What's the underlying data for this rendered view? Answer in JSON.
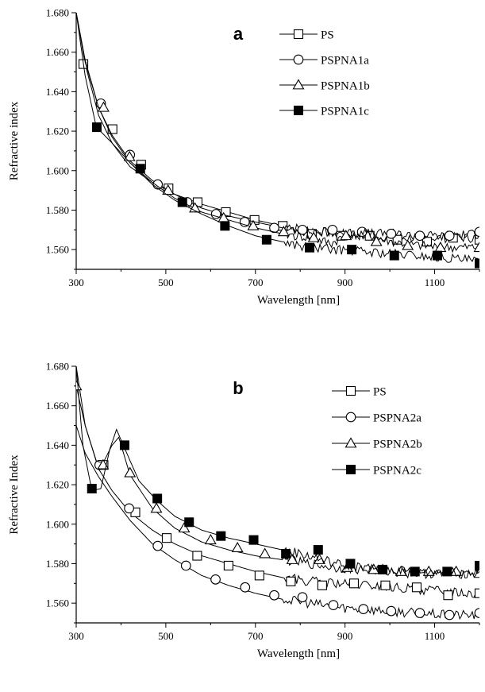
{
  "chart_data": [
    {
      "type": "line",
      "panel_label": "a",
      "xlabel": "Wavelength [nm]",
      "ylabel": "Refractive index",
      "xlim": [
        300,
        1200
      ],
      "ylim": [
        1.55,
        1.68
      ],
      "xticks": [
        "300",
        "500",
        "700",
        "900",
        "1100"
      ],
      "yticks": [
        "1.560",
        "1.580",
        "1.600",
        "1.620",
        "1.640",
        "1.660",
        "1.680"
      ],
      "grid": false,
      "legend_position": "top-right",
      "series": [
        {
          "name": "PS",
          "marker": "open-square",
          "x": [
            300,
            320,
            350,
            380,
            420,
            470,
            520,
            580,
            640,
            700,
            760,
            820,
            880,
            940,
            1000,
            1060,
            1120,
            1200
          ],
          "y": [
            1.68,
            1.654,
            1.628,
            1.614,
            1.602,
            1.594,
            1.588,
            1.583,
            1.579,
            1.575,
            1.572,
            1.57,
            1.568,
            1.567,
            1.566,
            1.566,
            1.566,
            1.566
          ],
          "marker_x": [
            316,
            381,
            445,
            506,
            571,
            634,
            698,
            761,
            826,
            891,
            955,
            1017,
            1083,
            1141,
            1200
          ],
          "marker_y": [
            1.654,
            1.621,
            1.603,
            1.591,
            1.584,
            1.579,
            1.575,
            1.572,
            1.568,
            1.567,
            1.567,
            1.565,
            1.564,
            1.566,
            1.565
          ]
        },
        {
          "name": "PSPNA1a",
          "marker": "open-circle",
          "x": [
            300,
            320,
            350,
            380,
            420,
            470,
            520,
            580,
            640,
            700,
            760,
            820,
            880,
            940,
            1000,
            1060,
            1120,
            1200
          ],
          "y": [
            1.68,
            1.656,
            1.632,
            1.618,
            1.605,
            1.595,
            1.588,
            1.581,
            1.577,
            1.574,
            1.571,
            1.569,
            1.569,
            1.568,
            1.568,
            1.567,
            1.567,
            1.568
          ],
          "marker_x": [
            355,
            420,
            482,
            548,
            612,
            676,
            742,
            805,
            872,
            938,
            1003,
            1067,
            1133,
            1200
          ],
          "marker_y": [
            1.634,
            1.608,
            1.593,
            1.584,
            1.578,
            1.574,
            1.571,
            1.57,
            1.57,
            1.569,
            1.568,
            1.567,
            1.567,
            1.569
          ]
        },
        {
          "name": "PSPNA1b",
          "marker": "open-triangle",
          "x": [
            300,
            320,
            350,
            380,
            420,
            470,
            520,
            580,
            640,
            700,
            760,
            820,
            870,
            900,
            940,
            1000,
            1060,
            1120,
            1200
          ],
          "y": [
            1.68,
            1.655,
            1.632,
            1.617,
            1.604,
            1.594,
            1.586,
            1.579,
            1.575,
            1.571,
            1.568,
            1.566,
            1.563,
            1.567,
            1.568,
            1.564,
            1.562,
            1.561,
            1.561
          ],
          "marker_x": [
            361,
            419,
            505,
            565,
            629,
            695,
            763,
            830,
            902,
            970,
            1040,
            1113,
            1200
          ],
          "marker_y": [
            1.632,
            1.607,
            1.59,
            1.581,
            1.576,
            1.572,
            1.569,
            1.566,
            1.567,
            1.564,
            1.562,
            1.561,
            1.561
          ]
        },
        {
          "name": "PSPNA1c",
          "marker": "filled-square",
          "x": [
            300,
            320,
            345,
            380,
            420,
            470,
            520,
            580,
            640,
            700,
            760,
            820,
            880,
            940,
            1000,
            1060,
            1120,
            1200
          ],
          "y": [
            1.68,
            1.648,
            1.622,
            1.614,
            1.604,
            1.593,
            1.585,
            1.578,
            1.572,
            1.567,
            1.564,
            1.561,
            1.56,
            1.559,
            1.558,
            1.557,
            1.556,
            1.554
          ],
          "marker_x": [
            346,
            443,
            537,
            632,
            725,
            821,
            915,
            1010,
            1106,
            1200
          ],
          "marker_y": [
            1.622,
            1.601,
            1.584,
            1.572,
            1.565,
            1.561,
            1.56,
            1.557,
            1.557,
            1.553
          ]
        }
      ]
    },
    {
      "type": "line",
      "panel_label": "b",
      "xlabel": "Wavelength [nm]",
      "ylabel": "Refractive Index",
      "xlim": [
        300,
        1200
      ],
      "ylim": [
        1.55,
        1.68
      ],
      "xticks": [
        "300",
        "500",
        "700",
        "900",
        "1100"
      ],
      "yticks": [
        "1.560",
        "1.580",
        "1.600",
        "1.620",
        "1.640",
        "1.660",
        "1.680"
      ],
      "grid": false,
      "legend_position": "top-right",
      "series": [
        {
          "name": "PS",
          "marker": "open-square",
          "x": [
            300,
            320,
            350,
            380,
            420,
            470,
            520,
            580,
            640,
            700,
            760,
            820,
            880,
            940,
            1000,
            1060,
            1120,
            1200
          ],
          "y": [
            1.68,
            1.65,
            1.628,
            1.617,
            1.606,
            1.597,
            1.59,
            1.584,
            1.58,
            1.576,
            1.573,
            1.571,
            1.57,
            1.569,
            1.568,
            1.567,
            1.566,
            1.565
          ],
          "marker_x": [
            361,
            432,
            502,
            570,
            640,
            709,
            779,
            849,
            920,
            990,
            1060,
            1130,
            1200
          ],
          "marker_y": [
            1.63,
            1.606,
            1.593,
            1.584,
            1.579,
            1.574,
            1.571,
            1.569,
            1.57,
            1.569,
            1.568,
            1.564,
            1.565
          ]
        },
        {
          "name": "PSPNA2a",
          "marker": "open-circle",
          "x": [
            300,
            320,
            350,
            380,
            420,
            470,
            520,
            580,
            640,
            700,
            760,
            820,
            880,
            940,
            1000,
            1060,
            1120,
            1200
          ],
          "y": [
            1.65,
            1.636,
            1.624,
            1.614,
            1.602,
            1.59,
            1.582,
            1.574,
            1.569,
            1.565,
            1.562,
            1.56,
            1.558,
            1.557,
            1.556,
            1.555,
            1.554,
            1.554
          ],
          "marker_x": [
            352,
            418,
            482,
            545,
            611,
            677,
            742,
            805,
            874,
            941,
            1003,
            1067,
            1133,
            1200
          ],
          "marker_y": [
            1.63,
            1.608,
            1.589,
            1.579,
            1.572,
            1.568,
            1.564,
            1.563,
            1.559,
            1.557,
            1.556,
            1.555,
            1.554,
            1.555
          ]
        },
        {
          "name": "PSPNA2b",
          "marker": "open-triangle",
          "x": [
            300,
            320,
            345,
            360,
            380,
            395,
            420,
            470,
            520,
            580,
            640,
            700,
            760,
            820,
            880,
            940,
            1000,
            1060,
            1120,
            1200
          ],
          "y": [
            1.67,
            1.65,
            1.632,
            1.631,
            1.64,
            1.644,
            1.625,
            1.608,
            1.598,
            1.591,
            1.587,
            1.584,
            1.582,
            1.58,
            1.578,
            1.577,
            1.576,
            1.575,
            1.575,
            1.575
          ],
          "marker_x": [
            300,
            360,
            420,
            479,
            541,
            600,
            660,
            721,
            782,
            843,
            905,
            964,
            1025,
            1087,
            1148,
            1200
          ],
          "marker_y": [
            1.67,
            1.63,
            1.626,
            1.608,
            1.598,
            1.592,
            1.588,
            1.585,
            1.582,
            1.582,
            1.578,
            1.577,
            1.576,
            1.576,
            1.576,
            1.575
          ]
        },
        {
          "name": "PSPNA2c",
          "marker": "filled-square",
          "x": [
            300,
            315,
            335,
            355,
            375,
            390,
            405,
            440,
            480,
            520,
            580,
            640,
            700,
            760,
            820,
            880,
            940,
            1000,
            1060,
            1120,
            1200
          ],
          "y": [
            1.68,
            1.64,
            1.617,
            1.618,
            1.638,
            1.648,
            1.64,
            1.622,
            1.612,
            1.604,
            1.597,
            1.593,
            1.59,
            1.587,
            1.584,
            1.58,
            1.578,
            1.577,
            1.576,
            1.576,
            1.576
          ],
          "marker_x": [
            335,
            408,
            481,
            552,
            623,
            696,
            768,
            840,
            912,
            984,
            1056,
            1128,
            1200
          ],
          "marker_y": [
            1.618,
            1.64,
            1.613,
            1.601,
            1.594,
            1.592,
            1.585,
            1.587,
            1.58,
            1.577,
            1.576,
            1.576,
            1.579
          ]
        }
      ]
    }
  ]
}
